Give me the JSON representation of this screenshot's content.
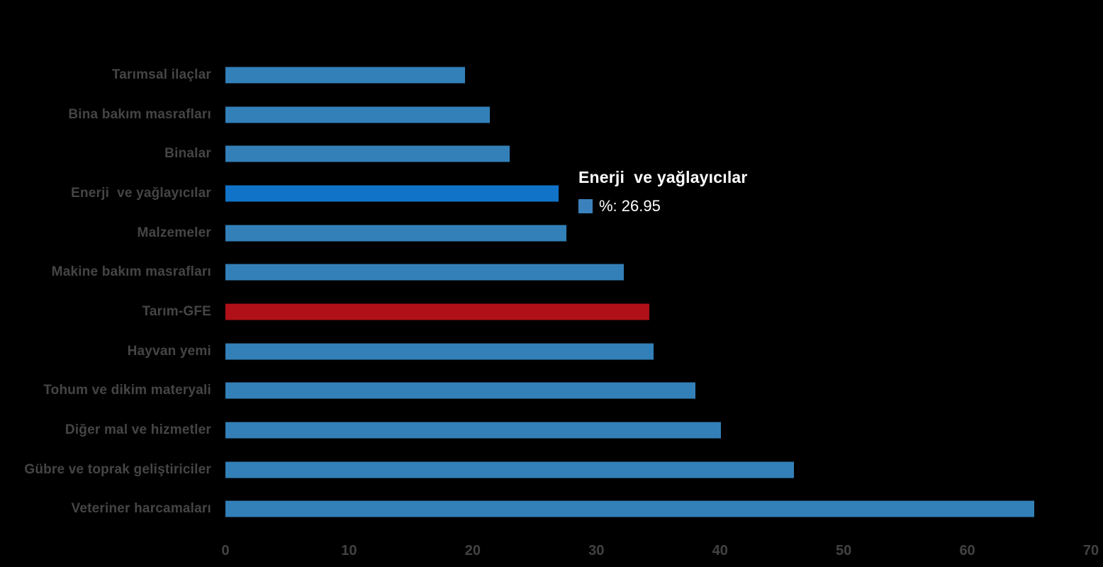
{
  "chart_data": {
    "type": "bar",
    "orientation": "horizontal",
    "title": "",
    "xlabel": "",
    "ylabel": "",
    "xlim": [
      0,
      70
    ],
    "x_ticks": [
      0,
      10,
      20,
      30,
      40,
      50,
      60,
      70
    ],
    "grid": false,
    "legend_position": "none",
    "categories": [
      "Tarımsal ilaçlar",
      "Bina bakım masrafları",
      "Binalar",
      "Enerji  ve yağlayıcılar",
      "Malzemeler",
      "Makine bakım masrafları",
      "Tarım-GFE",
      "Hayvan yemi",
      "Tohum ve dikim materyali",
      "Diğer mal ve hizmetler",
      "Gübre ve toprak geliştiriciler",
      "Veteriner harcamaları"
    ],
    "slugs": [
      "tarimsal-ilaclar",
      "bina-bakim-masraflari",
      "binalar",
      "enerji-ve-yaglayicilar",
      "malzemeler",
      "makine-bakim-masraflari",
      "tarim-gfe",
      "hayvan-yemi",
      "tohum-ve-dikim-materyali",
      "diger-mal-ve-hizmetler",
      "gubre-ve-toprak-gelistiriciler",
      "veteriner-harcamalari"
    ],
    "values": [
      19.4,
      21.4,
      23.0,
      26.95,
      27.6,
      32.2,
      34.3,
      34.6,
      38.0,
      40.1,
      46.0,
      65.4
    ],
    "color_keys": [
      "default",
      "default",
      "default",
      "highlight",
      "default",
      "default",
      "red",
      "default",
      "default",
      "default",
      "default",
      "default"
    ],
    "colors": {
      "default": "#3380B8",
      "highlight": "#1173C8",
      "red": "#B01118"
    }
  },
  "tooltip": {
    "title": "Enerji  ve yağlayıcılar",
    "series_label": "%",
    "value": "26.95",
    "value_text": "%: 26.95",
    "swatch_color": "#3B82BD"
  },
  "axis": {
    "tick_labels": [
      "0",
      "10",
      "20",
      "30",
      "40",
      "50",
      "60",
      "70"
    ]
  }
}
